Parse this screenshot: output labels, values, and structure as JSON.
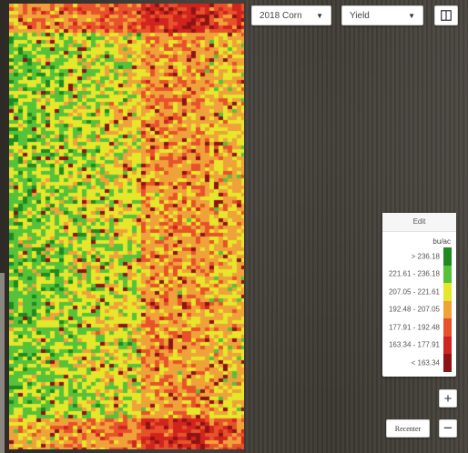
{
  "controls": {
    "season_select": {
      "value": "2018 Corn",
      "icon": "chevron-down-icon"
    },
    "layer_select": {
      "value": "Yield",
      "icon": "chevron-down-icon"
    },
    "split_view_icon": "split-view-icon"
  },
  "legend": {
    "edit_label": "Edit",
    "unit": "bu/ac",
    "ranges": [
      {
        "label": "> 236.18",
        "color": "#1f8a1f"
      },
      {
        "label": "221.61 - 236.18",
        "color": "#55c23a"
      },
      {
        "label": "207.05 - 221.61",
        "color": "#e6e62a"
      },
      {
        "label": "192.48 - 207.05",
        "color": "#f0a23a"
      },
      {
        "label": "177.91 - 192.48",
        "color": "#e8522a"
      },
      {
        "label": "163.34 - 177.91",
        "color": "#d2241e"
      },
      {
        "label": "< 163.34",
        "color": "#8e1414"
      }
    ]
  },
  "map_controls": {
    "zoom_in_label": "+",
    "zoom_out_label": "−",
    "recenter_label": "Recenter"
  }
}
